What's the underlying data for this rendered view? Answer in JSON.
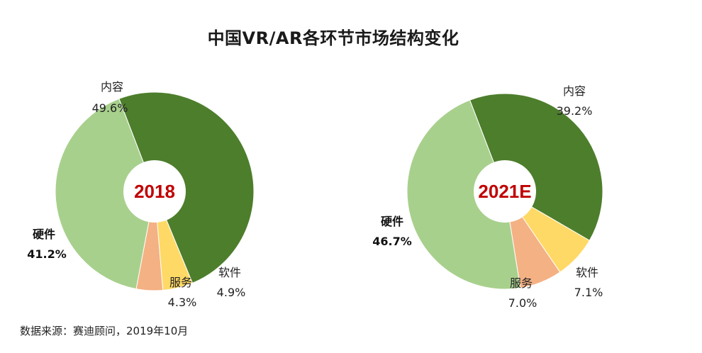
{
  "title": "中国VR/AR各环节市场结构变化",
  "source": "数据来源：赛迪顾问，2019年10月",
  "colors": {
    "content": "#4d7e2c",
    "hardware": "#a8d08d",
    "software": "#ffd966",
    "service": "#f4b183",
    "center_label": "#c00000"
  },
  "chart_data": [
    {
      "type": "pie",
      "style": "donut",
      "center_label": "2018",
      "slices": [
        {
          "label": "内容",
          "value": 49.6,
          "value_text": "49.6%",
          "color_key": "content"
        },
        {
          "label": "软件",
          "value": 4.9,
          "value_text": "4.9%",
          "color_key": "software"
        },
        {
          "label": "服务",
          "value": 4.3,
          "value_text": "4.3%",
          "color_key": "service"
        },
        {
          "label": "硬件",
          "value": 41.2,
          "value_text": "41.2%",
          "color_key": "hardware"
        }
      ]
    },
    {
      "type": "pie",
      "style": "donut",
      "center_label": "2021E",
      "slices": [
        {
          "label": "内容",
          "value": 39.2,
          "value_text": "39.2%",
          "color_key": "content"
        },
        {
          "label": "软件",
          "value": 7.1,
          "value_text": "7.1%",
          "color_key": "software"
        },
        {
          "label": "服务",
          "value": 7.0,
          "value_text": "7.0%",
          "color_key": "service"
        },
        {
          "label": "硬件",
          "value": 46.7,
          "value_text": "46.7%",
          "color_key": "hardware"
        }
      ]
    }
  ]
}
